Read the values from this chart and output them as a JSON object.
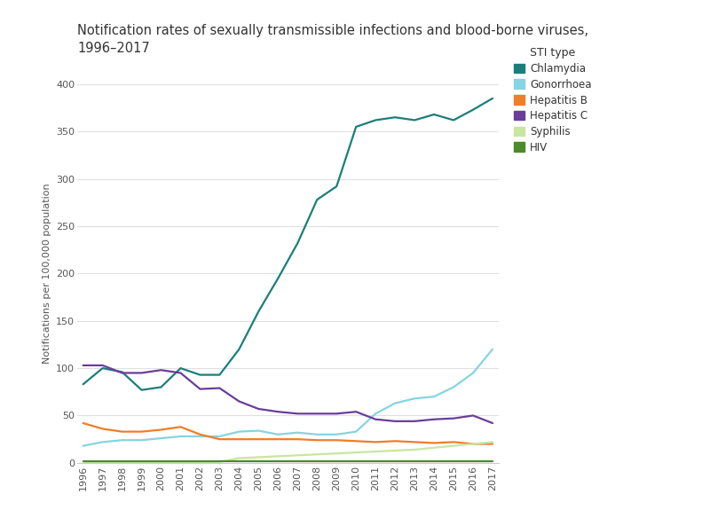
{
  "title": "Notification rates of sexually transmissible infections and blood-borne viruses,\n1996–2017",
  "ylabel": "Notifications per 100,000 population",
  "legend_title": "STI type",
  "years": [
    1996,
    1997,
    1998,
    1999,
    2000,
    2001,
    2002,
    2003,
    2004,
    2005,
    2006,
    2007,
    2008,
    2009,
    2010,
    2011,
    2012,
    2013,
    2014,
    2015,
    2016,
    2017
  ],
  "series": {
    "Chlamydia": {
      "color": "#1a7f7a",
      "values": [
        83,
        100,
        96,
        77,
        80,
        100,
        93,
        93,
        120,
        160,
        195,
        232,
        278,
        292,
        355,
        362,
        365,
        362,
        368,
        362,
        373,
        385
      ]
    },
    "Gonorrhoea": {
      "color": "#85d4e3",
      "values": [
        18,
        22,
        24,
        24,
        26,
        28,
        28,
        28,
        33,
        34,
        30,
        32,
        30,
        30,
        33,
        52,
        63,
        68,
        70,
        80,
        95,
        120
      ]
    },
    "Hepatitis B": {
      "color": "#f07d28",
      "values": [
        42,
        36,
        33,
        33,
        35,
        38,
        30,
        25,
        25,
        25,
        25,
        25,
        24,
        24,
        23,
        22,
        23,
        22,
        21,
        22,
        20,
        20
      ]
    },
    "Hepatitis C": {
      "color": "#6a3d9a",
      "values": [
        103,
        103,
        95,
        95,
        98,
        95,
        78,
        79,
        65,
        57,
        54,
        52,
        52,
        52,
        54,
        46,
        44,
        44,
        46,
        47,
        50,
        42
      ]
    },
    "Syphilis": {
      "color": "#c8e6a0",
      "values": [
        1,
        1,
        1,
        1,
        1,
        1,
        1,
        1,
        5,
        6,
        7,
        8,
        9,
        10,
        11,
        12,
        13,
        14,
        16,
        18,
        20,
        22
      ]
    },
    "HIV": {
      "color": "#4a8a2a",
      "values": [
        2,
        2,
        2,
        2,
        2,
        2,
        2,
        2,
        2,
        2,
        2,
        2,
        2,
        2,
        2,
        2,
        2,
        2,
        2,
        2,
        2,
        2
      ]
    }
  },
  "ylim": [
    0,
    400
  ],
  "yticks": [
    0,
    50,
    100,
    150,
    200,
    250,
    300,
    350,
    400
  ],
  "background_color": "#ffffff",
  "grid_color": "#e0e0e0",
  "title_fontsize": 10.5,
  "axis_label_fontsize": 8,
  "tick_fontsize": 8,
  "legend_fontsize": 8.5,
  "legend_title_fontsize": 9,
  "line_width": 1.6
}
